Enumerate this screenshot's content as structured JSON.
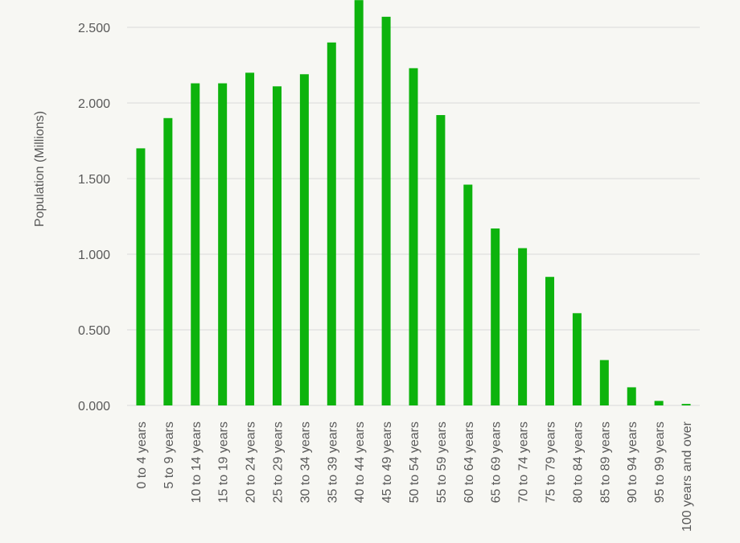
{
  "chart_data": {
    "type": "bar",
    "title": "",
    "xlabel": "",
    "ylabel": "Population (Millions)",
    "ylim": [
      0,
      2.7
    ],
    "yticks": [
      0,
      0.5,
      1.0,
      1.5,
      2.0,
      2.5
    ],
    "ytick_labels": [
      "0.000",
      "0.500",
      "1.000",
      "1.500",
      "2.000",
      "2.500"
    ],
    "grid": true,
    "legend": "none",
    "bar_color": "#0db30d",
    "categories": [
      "0 to 4 years",
      "5 to 9 years",
      "10 to 14 years",
      "15 to 19 years",
      "20 to 24 years",
      "25 to 29 years",
      "30 to 34 years",
      "35 to 39 years",
      "40 to 44 years",
      "45 to 49 years",
      "50 to 54 years",
      "55 to 59 years",
      "60 to 64 years",
      "65 to 69 years",
      "70 to 74 years",
      "75 to 79 years",
      "80 to 84 years",
      "85 to 89 years",
      "90 to 94 years",
      "95 to 99 years",
      "100 years and over"
    ],
    "values": [
      1.7,
      1.9,
      2.13,
      2.13,
      2.2,
      2.11,
      2.19,
      2.4,
      2.68,
      2.57,
      2.23,
      1.92,
      1.46,
      1.17,
      1.04,
      0.85,
      0.61,
      0.3,
      0.12,
      0.03,
      0.01
    ]
  }
}
